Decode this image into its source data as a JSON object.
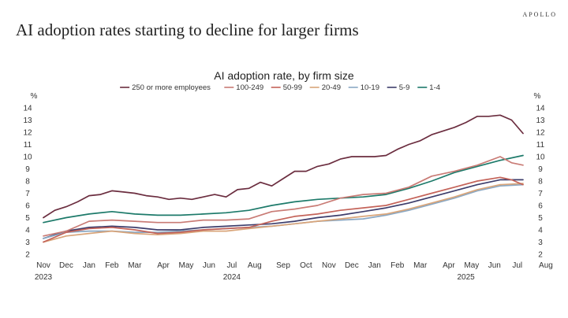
{
  "brand": "APOLLO",
  "headline": "AI adoption rates starting to decline for larger firms",
  "chart_data": {
    "type": "line",
    "title": "AI adoption rate, by firm size",
    "ylabel_left": "%",
    "ylabel_right": "%",
    "ylim": [
      2,
      14
    ],
    "yticks": [
      2,
      3,
      4,
      5,
      6,
      7,
      8,
      9,
      10,
      11,
      12,
      13,
      14
    ],
    "xlim": [
      0,
      42
    ],
    "x_ticks": [
      {
        "label": "Nov",
        "x": 0
      },
      {
        "label": "Dec",
        "x": 2
      },
      {
        "label": "Jan",
        "x": 4
      },
      {
        "label": "Feb",
        "x": 6
      },
      {
        "label": "Mar",
        "x": 8
      },
      {
        "label": "Apr",
        "x": 10.5
      },
      {
        "label": "May",
        "x": 12.5
      },
      {
        "label": "Jun",
        "x": 14.5
      },
      {
        "label": "Jul",
        "x": 16.5
      },
      {
        "label": "Aug",
        "x": 18.5
      },
      {
        "label": "Sep",
        "x": 21
      },
      {
        "label": "Oct",
        "x": 23
      },
      {
        "label": "Nov",
        "x": 25
      },
      {
        "label": "Dec",
        "x": 27
      },
      {
        "label": "Jan",
        "x": 29
      },
      {
        "label": "Feb",
        "x": 31
      },
      {
        "label": "Mar",
        "x": 33
      },
      {
        "label": "Apr",
        "x": 35.5
      },
      {
        "label": "May",
        "x": 37.5
      },
      {
        "label": "Jun",
        "x": 39.5
      },
      {
        "label": "Jul",
        "x": 41.5
      },
      {
        "label": "Aug",
        "x": 44
      }
    ],
    "year_labels": [
      {
        "label": "2023",
        "x": 0
      },
      {
        "label": "2024",
        "x": 16.5
      },
      {
        "label": "2025",
        "x": 37
      }
    ],
    "legend_position": "top-center",
    "series": [
      {
        "name": "250 or more employees",
        "color": "#6b2d3f",
        "points": [
          [
            0,
            5.0
          ],
          [
            1,
            5.6
          ],
          [
            2,
            5.9
          ],
          [
            3,
            6.3
          ],
          [
            4,
            6.8
          ],
          [
            5,
            6.9
          ],
          [
            6,
            7.2
          ],
          [
            7,
            7.1
          ],
          [
            8,
            7.0
          ],
          [
            9,
            6.8
          ],
          [
            10,
            6.7
          ],
          [
            11,
            6.5
          ],
          [
            12,
            6.6
          ],
          [
            13,
            6.5
          ],
          [
            14,
            6.7
          ],
          [
            15,
            6.9
          ],
          [
            16,
            6.7
          ],
          [
            17,
            7.3
          ],
          [
            18,
            7.4
          ],
          [
            19,
            7.9
          ],
          [
            20,
            7.6
          ],
          [
            21,
            8.2
          ],
          [
            22,
            8.8
          ],
          [
            23,
            8.8
          ],
          [
            24,
            9.2
          ],
          [
            25,
            9.4
          ],
          [
            26,
            9.8
          ],
          [
            27,
            10.0
          ],
          [
            28,
            10.0
          ],
          [
            29,
            10.0
          ],
          [
            30,
            10.1
          ],
          [
            31,
            10.6
          ],
          [
            32,
            11.0
          ],
          [
            33,
            11.3
          ],
          [
            34,
            11.8
          ],
          [
            35,
            12.1
          ],
          [
            36,
            12.4
          ],
          [
            37,
            12.8
          ],
          [
            38,
            13.3
          ],
          [
            39,
            13.3
          ],
          [
            40,
            13.4
          ],
          [
            41,
            13.0
          ],
          [
            42,
            11.9
          ]
        ]
      },
      {
        "name": "100-249",
        "color": "#c97b75",
        "points": [
          [
            0,
            3.5
          ],
          [
            2,
            3.9
          ],
          [
            4,
            4.7
          ],
          [
            6,
            4.8
          ],
          [
            8,
            4.7
          ],
          [
            10,
            4.6
          ],
          [
            12,
            4.6
          ],
          [
            14,
            4.8
          ],
          [
            16,
            4.8
          ],
          [
            18,
            4.9
          ],
          [
            20,
            5.5
          ],
          [
            22,
            5.7
          ],
          [
            24,
            6.0
          ],
          [
            26,
            6.6
          ],
          [
            28,
            6.9
          ],
          [
            30,
            7.0
          ],
          [
            32,
            7.5
          ],
          [
            34,
            8.4
          ],
          [
            36,
            8.8
          ],
          [
            38,
            9.3
          ],
          [
            40,
            10.0
          ],
          [
            41,
            9.5
          ],
          [
            42,
            9.3
          ]
        ]
      },
      {
        "name": "50-99",
        "color": "#c46359",
        "points": [
          [
            0,
            3.0
          ],
          [
            2,
            3.8
          ],
          [
            4,
            4.1
          ],
          [
            6,
            4.2
          ],
          [
            8,
            4.0
          ],
          [
            10,
            3.7
          ],
          [
            12,
            3.8
          ],
          [
            14,
            4.0
          ],
          [
            16,
            4.1
          ],
          [
            18,
            4.2
          ],
          [
            20,
            4.7
          ],
          [
            22,
            5.1
          ],
          [
            24,
            5.3
          ],
          [
            26,
            5.6
          ],
          [
            28,
            5.8
          ],
          [
            30,
            6.0
          ],
          [
            32,
            6.5
          ],
          [
            34,
            7.0
          ],
          [
            36,
            7.5
          ],
          [
            38,
            8.0
          ],
          [
            40,
            8.3
          ],
          [
            41,
            8.1
          ],
          [
            42,
            7.7
          ]
        ]
      },
      {
        "name": "20-49",
        "color": "#d9a57a",
        "points": [
          [
            0,
            3.0
          ],
          [
            2,
            3.5
          ],
          [
            4,
            3.7
          ],
          [
            6,
            3.9
          ],
          [
            8,
            3.7
          ],
          [
            10,
            3.6
          ],
          [
            12,
            3.7
          ],
          [
            14,
            3.9
          ],
          [
            16,
            3.9
          ],
          [
            18,
            4.1
          ],
          [
            20,
            4.3
          ],
          [
            22,
            4.5
          ],
          [
            24,
            4.7
          ],
          [
            26,
            4.9
          ],
          [
            28,
            5.1
          ],
          [
            30,
            5.3
          ],
          [
            32,
            5.7
          ],
          [
            34,
            6.2
          ],
          [
            36,
            6.7
          ],
          [
            38,
            7.3
          ],
          [
            40,
            7.7
          ],
          [
            42,
            7.8
          ]
        ]
      },
      {
        "name": "10-19",
        "color": "#8aa8c4",
        "points": [
          [
            0,
            3.3
          ],
          [
            2,
            3.8
          ],
          [
            4,
            3.9
          ],
          [
            6,
            3.9
          ],
          [
            8,
            3.8
          ],
          [
            10,
            3.8
          ],
          [
            12,
            3.9
          ],
          [
            14,
            4.0
          ],
          [
            16,
            4.1
          ],
          [
            18,
            4.2
          ],
          [
            20,
            4.3
          ],
          [
            22,
            4.5
          ],
          [
            24,
            4.7
          ],
          [
            26,
            4.8
          ],
          [
            28,
            4.9
          ],
          [
            30,
            5.2
          ],
          [
            32,
            5.6
          ],
          [
            34,
            6.1
          ],
          [
            36,
            6.6
          ],
          [
            38,
            7.2
          ],
          [
            40,
            7.6
          ],
          [
            42,
            7.7
          ]
        ]
      },
      {
        "name": "5-9",
        "color": "#3d3d6b",
        "points": [
          [
            0,
            3.3
          ],
          [
            2,
            3.9
          ],
          [
            4,
            4.2
          ],
          [
            6,
            4.3
          ],
          [
            8,
            4.2
          ],
          [
            10,
            4.0
          ],
          [
            12,
            4.0
          ],
          [
            14,
            4.2
          ],
          [
            16,
            4.3
          ],
          [
            18,
            4.4
          ],
          [
            20,
            4.5
          ],
          [
            22,
            4.7
          ],
          [
            24,
            5.0
          ],
          [
            26,
            5.2
          ],
          [
            28,
            5.5
          ],
          [
            30,
            5.8
          ],
          [
            32,
            6.2
          ],
          [
            34,
            6.7
          ],
          [
            36,
            7.2
          ],
          [
            38,
            7.7
          ],
          [
            40,
            8.1
          ],
          [
            42,
            8.1
          ]
        ]
      },
      {
        "name": "1-4",
        "color": "#1d7a6a",
        "points": [
          [
            0,
            4.6
          ],
          [
            2,
            5.0
          ],
          [
            4,
            5.3
          ],
          [
            6,
            5.5
          ],
          [
            8,
            5.3
          ],
          [
            10,
            5.2
          ],
          [
            12,
            5.2
          ],
          [
            14,
            5.3
          ],
          [
            16,
            5.4
          ],
          [
            18,
            5.6
          ],
          [
            20,
            6.0
          ],
          [
            22,
            6.3
          ],
          [
            24,
            6.5
          ],
          [
            26,
            6.6
          ],
          [
            28,
            6.7
          ],
          [
            30,
            6.9
          ],
          [
            32,
            7.4
          ],
          [
            34,
            8.0
          ],
          [
            36,
            8.7
          ],
          [
            38,
            9.2
          ],
          [
            40,
            9.7
          ],
          [
            42,
            10.1
          ]
        ]
      }
    ]
  }
}
